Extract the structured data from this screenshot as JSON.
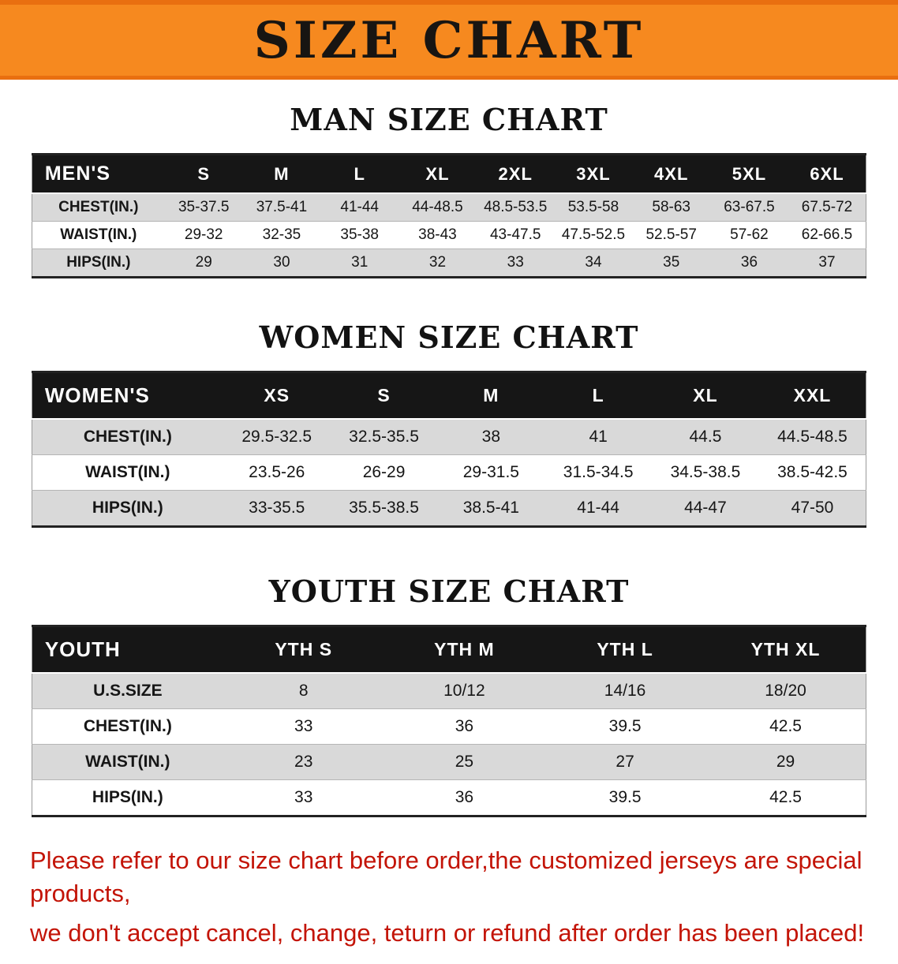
{
  "banner": {
    "title": "SIZE CHART"
  },
  "colors": {
    "banner_bg": "#F6891F",
    "table_header_bg": "#161616",
    "row_stripe": "#D9D9D9",
    "disclaimer_text": "#C31407"
  },
  "sections": [
    {
      "id": "men",
      "heading": "MAN SIZE CHART",
      "table": {
        "header": [
          "MEN'S",
          "S",
          "M",
          "L",
          "XL",
          "2XL",
          "3XL",
          "4XL",
          "5XL",
          "6XL"
        ],
        "rows": [
          [
            "CHEST(IN.)",
            "35-37.5",
            "37.5-41",
            "41-44",
            "44-48.5",
            "48.5-53.5",
            "53.5-58",
            "58-63",
            "63-67.5",
            "67.5-72"
          ],
          [
            "WAIST(IN.)",
            "29-32",
            "32-35",
            "35-38",
            "38-43",
            "43-47.5",
            "47.5-52.5",
            "52.5-57",
            "57-62",
            "62-66.5"
          ],
          [
            "HIPS(IN.)",
            "29",
            "30",
            "31",
            "32",
            "33",
            "34",
            "35",
            "36",
            "37"
          ]
        ]
      }
    },
    {
      "id": "women",
      "heading": "WOMEN SIZE CHART",
      "table": {
        "header": [
          "WOMEN'S",
          "XS",
          "S",
          "M",
          "L",
          "XL",
          "XXL"
        ],
        "rows": [
          [
            "CHEST(IN.)",
            "29.5-32.5",
            "32.5-35.5",
            "38",
            "41",
            "44.5",
            "44.5-48.5"
          ],
          [
            "WAIST(IN.)",
            "23.5-26",
            "26-29",
            "29-31.5",
            "31.5-34.5",
            "34.5-38.5",
            "38.5-42.5"
          ],
          [
            "HIPS(IN.)",
            "33-35.5",
            "35.5-38.5",
            "38.5-41",
            "41-44",
            "44-47",
            "47-50"
          ]
        ]
      }
    },
    {
      "id": "youth",
      "heading": "YOUTH SIZE CHART",
      "table": {
        "header": [
          "YOUTH",
          "YTH S",
          "YTH M",
          "YTH L",
          "YTH XL"
        ],
        "rows": [
          [
            "U.S.SIZE",
            "8",
            "10/12",
            "14/16",
            "18/20"
          ],
          [
            "CHEST(IN.)",
            "33",
            "36",
            "39.5",
            "42.5"
          ],
          [
            "WAIST(IN.)",
            "23",
            "25",
            "27",
            "29"
          ],
          [
            "HIPS(IN.)",
            "33",
            "36",
            "39.5",
            "42.5"
          ]
        ]
      }
    }
  ],
  "disclaimer": {
    "line1": "Please refer to our size chart before order,the customized jerseys are special products,",
    "line2": "we don't accept cancel, change, teturn or refund after order has been placed!"
  }
}
